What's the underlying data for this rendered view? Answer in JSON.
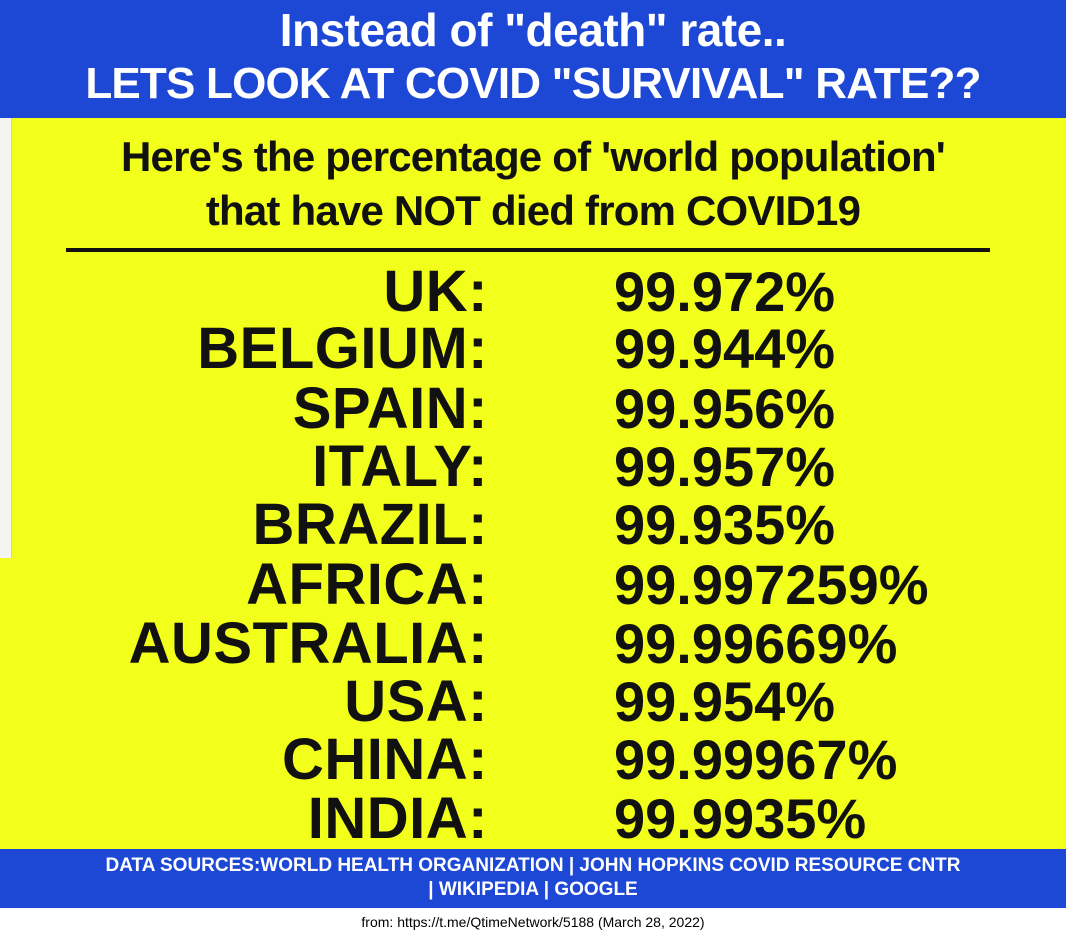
{
  "header": {
    "line1": "Instead of \"death\" rate..",
    "line2": "LETS LOOK AT COVID \"SURVIVAL\" RATE??",
    "bg_color": "#1d48d6"
  },
  "subtitle": {
    "line1": "Here's the percentage of 'world population'",
    "line2": "that have NOT died from COVID19"
  },
  "rows": [
    {
      "country": "UK:",
      "value": "99.972%"
    },
    {
      "country": "BELGIUM:",
      "value": "99.944%"
    },
    {
      "country": "SPAIN:",
      "value": "99.956%"
    },
    {
      "country": "ITALY:",
      "value": "99.957%"
    },
    {
      "country": "BRAZIL:",
      "value": "99.935%"
    },
    {
      "country": "AFRICA:",
      "value": "99.997259%"
    },
    {
      "country": "AUSTRALIA:",
      "value": "99.99669%"
    },
    {
      "country": "USA:",
      "value": "99.954%"
    },
    {
      "country": "CHINA:",
      "value": "99.99967%"
    },
    {
      "country": "INDIA:",
      "value": "99.9935%"
    }
  ],
  "footer": {
    "line1": "DATA SOURCES:WORLD HEALTH ORGANIZATION | JOHN HOPKINS COVID RESOURCE CNTR",
    "line2": "| WIKIPEDIA | GOOGLE"
  },
  "caption": "from: https://t.me/QtimeNetwork/5188 (March 28, 2022)",
  "colors": {
    "background": "#f2ff1a",
    "text": "#111111",
    "band": "#1d48d6"
  }
}
